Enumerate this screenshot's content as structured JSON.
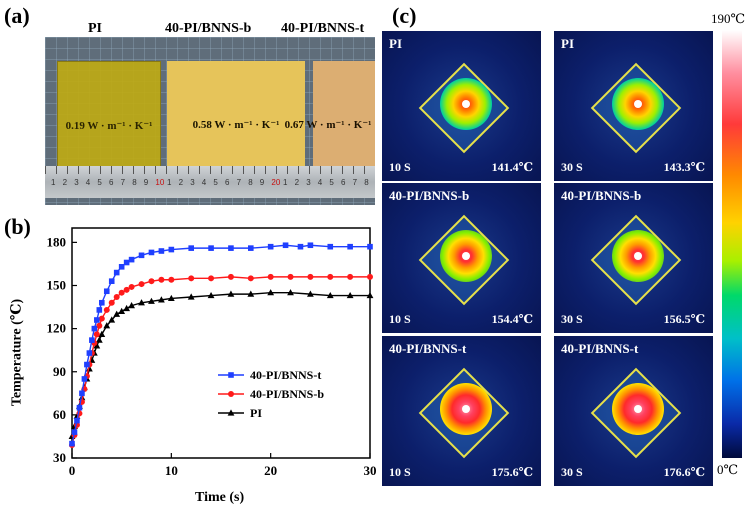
{
  "panel_labels": {
    "a": "(a)",
    "b": "(b)",
    "c": "(c)"
  },
  "photo": {
    "films": [
      {
        "name": "PI",
        "conductivity": "0.19 W · m⁻¹ · K⁻¹"
      },
      {
        "name": "40-PI/BNNS-b",
        "conductivity": "0.58 W · m⁻¹ · K⁻¹"
      },
      {
        "name": "40-PI/BNNS-t",
        "conductivity": "0.67 W · m⁻¹ · K⁻¹"
      }
    ],
    "ruler_numbers": [
      "1",
      "2",
      "3",
      "4",
      "5",
      "6",
      "7",
      "8",
      "9",
      "10",
      "1",
      "2",
      "3",
      "4",
      "5",
      "6",
      "7",
      "8",
      "9",
      "20",
      "1",
      "2",
      "3",
      "4",
      "5",
      "6",
      "7",
      "8"
    ]
  },
  "chart_data": {
    "type": "line",
    "xlabel": "Time (s)",
    "ylabel": "Temperature (℃)",
    "xlim": [
      0,
      30
    ],
    "ylim": [
      30,
      190
    ],
    "xticks": [
      0,
      10,
      20,
      30
    ],
    "yticks": [
      30,
      60,
      90,
      120,
      150,
      180
    ],
    "legend_position": "center-right",
    "series": [
      {
        "name": "40-PI/BNNS-t",
        "color": "#1f3fff",
        "marker": "square",
        "x": [
          0,
          0.25,
          0.5,
          0.75,
          1,
          1.25,
          1.5,
          1.75,
          2,
          2.25,
          2.5,
          2.75,
          3,
          3.5,
          4,
          4.5,
          5,
          5.5,
          6,
          7,
          8,
          9,
          10,
          12,
          14,
          16,
          18,
          20,
          21.5,
          23,
          24,
          26,
          28,
          30
        ],
        "y": [
          40,
          48,
          56,
          65,
          75,
          85,
          95,
          103,
          112,
          120,
          126,
          133,
          138,
          146,
          153,
          159,
          163,
          166,
          168,
          171,
          173,
          174,
          175,
          176,
          176,
          176,
          176,
          177,
          178,
          177,
          178,
          177,
          177,
          177
        ]
      },
      {
        "name": "40-PI/BNNS-b",
        "color": "#ff1a1a",
        "marker": "circle",
        "x": [
          0,
          0.25,
          0.5,
          0.75,
          1,
          1.25,
          1.5,
          1.75,
          2,
          2.25,
          2.5,
          2.75,
          3,
          3.5,
          4,
          4.5,
          5,
          5.5,
          6,
          7,
          8,
          9,
          10,
          12,
          14,
          16,
          18,
          20,
          22,
          24,
          26,
          28,
          30
        ],
        "y": [
          39,
          46,
          53,
          61,
          69,
          78,
          87,
          95,
          103,
          110,
          116,
          122,
          127,
          133,
          138,
          142,
          145,
          147,
          149,
          151,
          153,
          154,
          154,
          155,
          155,
          156,
          155,
          156,
          156,
          156,
          156,
          156,
          156
        ]
      },
      {
        "name": "PI",
        "color": "#000000",
        "marker": "triangle",
        "x": [
          0,
          0.25,
          0.5,
          0.75,
          1,
          1.25,
          1.5,
          1.75,
          2,
          2.25,
          2.5,
          2.75,
          3,
          3.5,
          4,
          4.5,
          5,
          5.5,
          6,
          7,
          8,
          9,
          10,
          12,
          14,
          16,
          18,
          20,
          22,
          24,
          26,
          28,
          30
        ],
        "y": [
          45,
          52,
          59,
          66,
          72,
          79,
          85,
          92,
          98,
          103,
          108,
          112,
          116,
          122,
          126,
          130,
          132,
          134,
          136,
          138,
          139,
          140,
          141,
          142,
          143,
          144,
          144,
          145,
          145,
          144,
          143,
          143,
          143
        ]
      }
    ]
  },
  "thermal_images": [
    {
      "title": "PI",
      "time": "10 S",
      "temperature": "141.4℃",
      "intensity": "low"
    },
    {
      "title": "PI",
      "time": "30 S",
      "temperature": "143.3℃",
      "intensity": "low"
    },
    {
      "title": "40-PI/BNNS-b",
      "time": "10 S",
      "temperature": "154.4℃",
      "intensity": "mid"
    },
    {
      "title": "40-PI/BNNS-b",
      "time": "30 S",
      "temperature": "156.5℃",
      "intensity": "mid"
    },
    {
      "title": "40-PI/BNNS-t",
      "time": "10 S",
      "temperature": "175.6℃",
      "intensity": "high"
    },
    {
      "title": "40-PI/BNNS-t",
      "time": "30 S",
      "temperature": "176.6℃",
      "intensity": "high"
    }
  ],
  "colorbar": {
    "max_label": "190℃",
    "min_label": "0℃"
  }
}
